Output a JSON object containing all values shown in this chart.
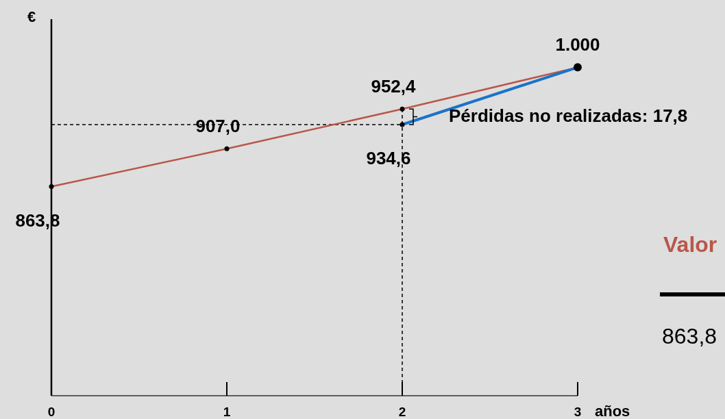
{
  "chart_data": {
    "type": "line",
    "xlabel": "años",
    "ylabel": "€",
    "xlim": [
      0,
      3
    ],
    "xticks": [
      0,
      1,
      2,
      3
    ],
    "ylim": [
      625,
      1055
    ],
    "tick_labels": "x",
    "marker": "circle",
    "series": [
      {
        "color": "#b9574a",
        "x": [
          0,
          1,
          2,
          3
        ],
        "values": [
          863.8,
          907.0,
          952.4,
          1000
        ],
        "value_labels": [
          "863,8",
          "907,0",
          "952,4",
          "1.000"
        ]
      },
      {
        "color": "#1a73c8",
        "x": [
          2,
          3
        ],
        "values": [
          934.6,
          1000
        ],
        "value_labels": [
          "934,6",
          null
        ]
      }
    ],
    "ref_lines": [
      {
        "axis": "y",
        "value": 934.6,
        "line_style": "dashed",
        "color": "#000000"
      },
      {
        "axis": "x",
        "value": 2,
        "line_style": "dashed",
        "color": "#000000"
      }
    ],
    "annotations": [
      {
        "text": "Pérdidas no realizadas: 17,8",
        "x": 2,
        "y": 943.5
      },
      "Valor",
      "863,8"
    ]
  }
}
